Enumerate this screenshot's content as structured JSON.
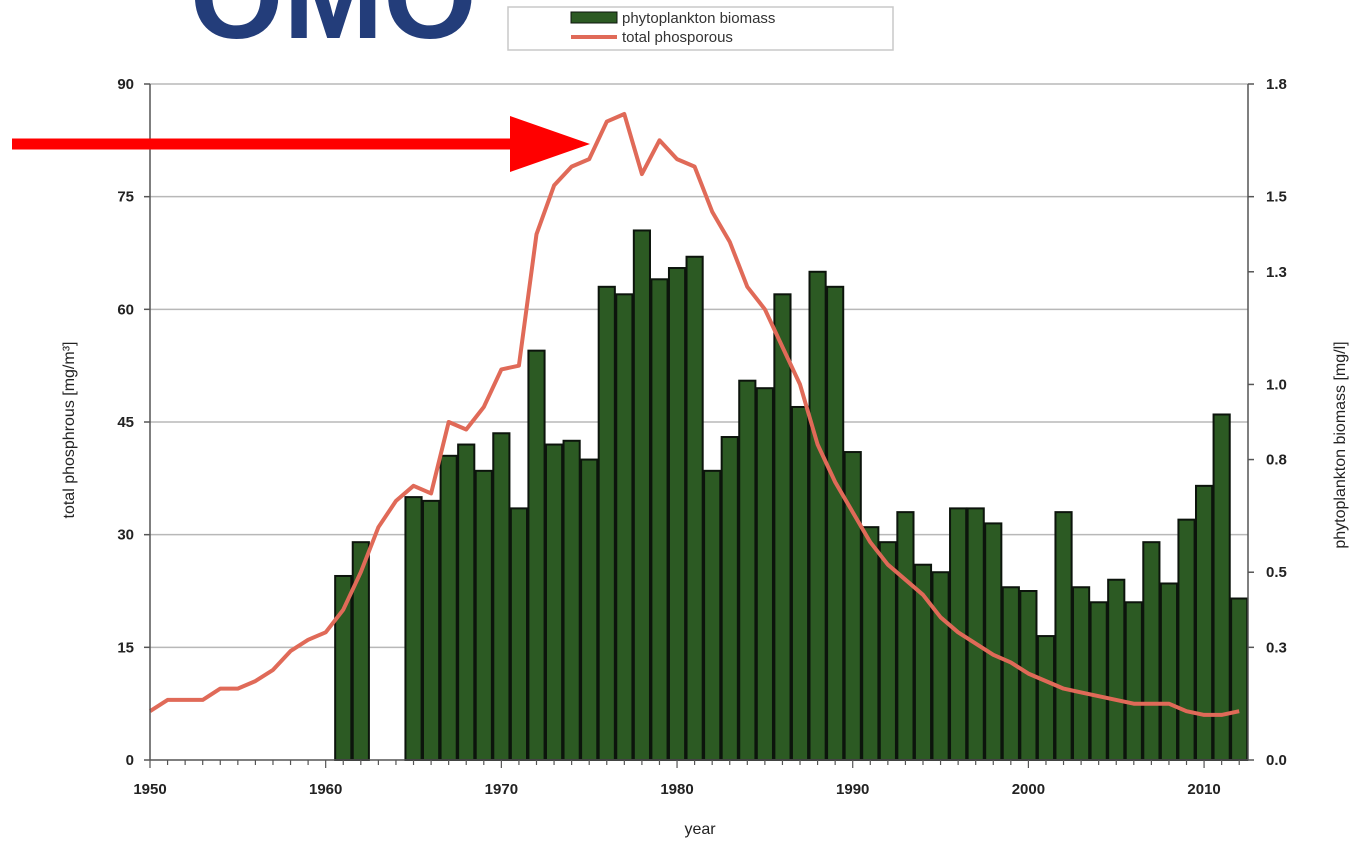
{
  "watermark": "OMO",
  "chart_data": {
    "type": "bar+line",
    "xlabel": "year",
    "ylabel_left": "total phosphrous [mg/m³]",
    "ylabel_right": "phytoplankton biomass [mg/l]",
    "x_ticks": [
      "1950",
      "1960",
      "1970",
      "1980",
      "1990",
      "2000",
      "2010"
    ],
    "y_left_ticks": [
      "0",
      "15",
      "30",
      "45",
      "60",
      "75",
      "90"
    ],
    "y_right_ticks": [
      "0.0",
      "0.3",
      "0.5",
      "0.8",
      "1.0",
      "1.3",
      "1.5",
      "1.8"
    ],
    "xlim": [
      1950,
      2012.5
    ],
    "ylim_left": [
      0,
      90
    ],
    "ylim_right": [
      0,
      1.8
    ],
    "grid": true,
    "legend": [
      "phytoplankton biomass",
      "total phosporous"
    ],
    "colors": {
      "bars": "#2c5a23",
      "line": "#e06a58",
      "arrow": "#ff0000",
      "grid": "#b8b8b8"
    },
    "series": [
      {
        "name": "phytoplankton biomass",
        "kind": "bar",
        "axis": "left",
        "x": [
          1961,
          1962,
          1965,
          1966,
          1967,
          1968,
          1969,
          1970,
          1971,
          1972,
          1973,
          1974,
          1975,
          1976,
          1977,
          1978,
          1979,
          1980,
          1981,
          1982,
          1983,
          1984,
          1985,
          1986,
          1987,
          1988,
          1989,
          1990,
          1991,
          1992,
          1993,
          1994,
          1995,
          1996,
          1997,
          1998,
          1999,
          2000,
          2001,
          2002,
          2003,
          2004,
          2005,
          2006,
          2007,
          2008,
          2009,
          2010,
          2011,
          2012
        ],
        "values": [
          24.5,
          29,
          35,
          34.5,
          40.5,
          42,
          38.5,
          43.5,
          33.5,
          54.5,
          42,
          42.5,
          40,
          63,
          62,
          70.5,
          64,
          65.5,
          67,
          38.5,
          43,
          50.5,
          49.5,
          62,
          47,
          65,
          63,
          41,
          31,
          29,
          33,
          26,
          25,
          33.5,
          33.5,
          31.5,
          23,
          22.5,
          16.5,
          33,
          23,
          21,
          24,
          21,
          29,
          23.5,
          32,
          36.5,
          46,
          21.5
        ]
      },
      {
        "name": "total phosporous",
        "kind": "line",
        "axis": "left",
        "x": [
          1950,
          1951,
          1952,
          1953,
          1954,
          1955,
          1956,
          1957,
          1958,
          1959,
          1960,
          1961,
          1962,
          1963,
          1964,
          1965,
          1966,
          1967,
          1968,
          1969,
          1970,
          1971,
          1972,
          1973,
          1974,
          1975,
          1976,
          1977,
          1978,
          1979,
          1980,
          1981,
          1982,
          1983,
          1984,
          1985,
          1986,
          1987,
          1988,
          1989,
          1990,
          1991,
          1992,
          1993,
          1994,
          1995,
          1996,
          1997,
          1998,
          1999,
          2000,
          2001,
          2002,
          2003,
          2004,
          2005,
          2006,
          2007,
          2008,
          2009,
          2010,
          2011,
          2012
        ],
        "values": [
          6.5,
          8,
          8,
          8,
          9.5,
          9.5,
          10.5,
          12,
          14.5,
          16,
          17,
          20,
          25,
          31,
          34.5,
          36.5,
          35.5,
          45,
          44,
          47,
          52,
          52.5,
          70,
          76.5,
          79,
          80,
          85,
          86,
          78,
          82.5,
          80,
          79,
          73,
          69,
          63,
          60,
          55,
          50,
          42,
          37,
          33,
          29,
          26,
          24,
          22,
          19,
          17,
          15.5,
          14,
          13,
          11.5,
          10.5,
          9.5,
          9,
          8.5,
          8,
          7.5,
          7.5,
          7.5,
          6.5,
          6,
          6,
          6.5
        ]
      }
    ]
  }
}
